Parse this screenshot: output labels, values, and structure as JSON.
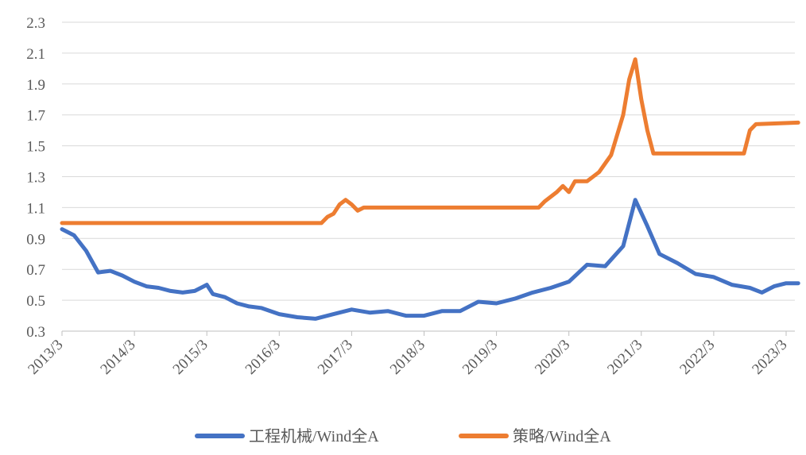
{
  "chart_data": {
    "type": "line",
    "title": "",
    "xlabel": "",
    "ylabel": "",
    "ylim": [
      0.3,
      2.3
    ],
    "y_ticks": [
      "0.3",
      "0.5",
      "0.7",
      "0.9",
      "1.1",
      "1.3",
      "1.5",
      "1.7",
      "1.9",
      "2.1",
      "2.3"
    ],
    "x_ticks": [
      "2013/3",
      "2014/3",
      "2015/3",
      "2016/3",
      "2017/3",
      "2018/3",
      "2019/3",
      "2020/3",
      "2021/3",
      "2022/3",
      "2023/3"
    ],
    "grid": "horizontal",
    "legend_position": "bottom",
    "series": [
      {
        "name": "工程机械/Wind全A",
        "color": "#4472C4",
        "points": [
          [
            "2013/3",
            0.96
          ],
          [
            "2013/5",
            0.92
          ],
          [
            "2013/7",
            0.82
          ],
          [
            "2013/9",
            0.68
          ],
          [
            "2013/11",
            0.69
          ],
          [
            "2014/1",
            0.66
          ],
          [
            "2014/3",
            0.62
          ],
          [
            "2014/5",
            0.59
          ],
          [
            "2014/7",
            0.58
          ],
          [
            "2014/9",
            0.56
          ],
          [
            "2014/11",
            0.55
          ],
          [
            "2015/1",
            0.56
          ],
          [
            "2015/3",
            0.6
          ],
          [
            "2015/4",
            0.54
          ],
          [
            "2015/6",
            0.52
          ],
          [
            "2015/8",
            0.48
          ],
          [
            "2015/10",
            0.46
          ],
          [
            "2015/12",
            0.45
          ],
          [
            "2016/3",
            0.41
          ],
          [
            "2016/6",
            0.39
          ],
          [
            "2016/9",
            0.38
          ],
          [
            "2016/12",
            0.41
          ],
          [
            "2017/3",
            0.44
          ],
          [
            "2017/6",
            0.42
          ],
          [
            "2017/9",
            0.43
          ],
          [
            "2017/12",
            0.4
          ],
          [
            "2018/3",
            0.4
          ],
          [
            "2018/6",
            0.43
          ],
          [
            "2018/9",
            0.43
          ],
          [
            "2018/12",
            0.49
          ],
          [
            "2019/3",
            0.48
          ],
          [
            "2019/6",
            0.51
          ],
          [
            "2019/9",
            0.55
          ],
          [
            "2019/12",
            0.58
          ],
          [
            "2020/3",
            0.62
          ],
          [
            "2020/6",
            0.73
          ],
          [
            "2020/9",
            0.72
          ],
          [
            "2020/12",
            0.85
          ],
          [
            "2021/2",
            1.15
          ],
          [
            "2021/4",
            0.98
          ],
          [
            "2021/6",
            0.8
          ],
          [
            "2021/9",
            0.74
          ],
          [
            "2021/12",
            0.67
          ],
          [
            "2022/3",
            0.65
          ],
          [
            "2022/6",
            0.6
          ],
          [
            "2022/9",
            0.58
          ],
          [
            "2022/11",
            0.55
          ],
          [
            "2023/1",
            0.59
          ],
          [
            "2023/3",
            0.61
          ],
          [
            "2023/5",
            0.61
          ]
        ]
      },
      {
        "name": "策略/Wind全A",
        "color": "#ED7D31",
        "points": [
          [
            "2013/3",
            1.0
          ],
          [
            "2016/10",
            1.0
          ],
          [
            "2016/11",
            1.04
          ],
          [
            "2016/12",
            1.06
          ],
          [
            "2017/1",
            1.12
          ],
          [
            "2017/2",
            1.15
          ],
          [
            "2017/3",
            1.12
          ],
          [
            "2017/4",
            1.08
          ],
          [
            "2017/5",
            1.1
          ],
          [
            "2019/10",
            1.1
          ],
          [
            "2019/11",
            1.14
          ],
          [
            "2020/1",
            1.2
          ],
          [
            "2020/2",
            1.24
          ],
          [
            "2020/3",
            1.2
          ],
          [
            "2020/4",
            1.27
          ],
          [
            "2020/6",
            1.27
          ],
          [
            "2020/8",
            1.33
          ],
          [
            "2020/10",
            1.44
          ],
          [
            "2020/12",
            1.7
          ],
          [
            "2021/1",
            1.93
          ],
          [
            "2021/2",
            2.06
          ],
          [
            "2021/3",
            1.8
          ],
          [
            "2021/4",
            1.6
          ],
          [
            "2021/5",
            1.45
          ],
          [
            "2022/8",
            1.45
          ],
          [
            "2022/9",
            1.6
          ],
          [
            "2022/10",
            1.64
          ],
          [
            "2023/5",
            1.65
          ]
        ]
      }
    ]
  }
}
